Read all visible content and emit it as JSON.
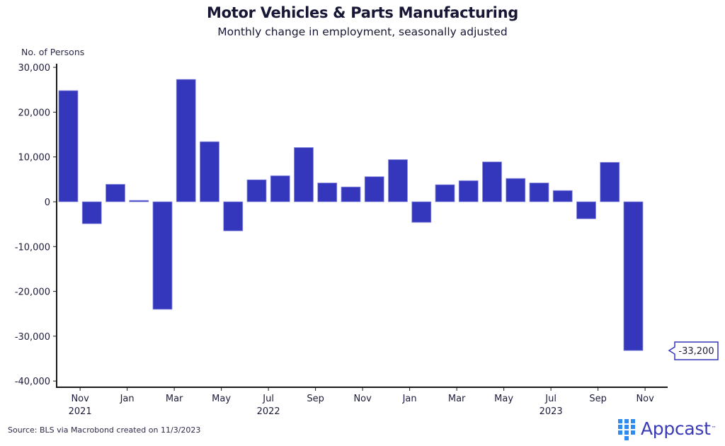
{
  "chart_data": {
    "type": "bar",
    "title": "Motor Vehicles & Parts Manufacturing",
    "subtitle": "Monthly change in employment, seasonally adjusted",
    "ylabel": "No. of Persons",
    "xlabel": "",
    "ylim": [
      -40000,
      30000
    ],
    "yticks": [
      30000,
      20000,
      10000,
      0,
      -10000,
      -20000,
      -30000,
      -40000
    ],
    "ytick_labels": [
      "30,000",
      "20,000",
      "10,000",
      "0",
      "-10,000",
      "-20,000",
      "-30,000",
      "-40,000"
    ],
    "grid": false,
    "categories": [
      "Oct 2021",
      "Nov 2021",
      "Dec 2021",
      "Jan 2022",
      "Feb 2022",
      "Mar 2022",
      "Apr 2022",
      "May 2022",
      "Jun 2022",
      "Jul 2022",
      "Aug 2022",
      "Sep 2022",
      "Oct 2022",
      "Nov 2022",
      "Dec 2022",
      "Jan 2023",
      "Feb 2023",
      "Mar 2023",
      "Apr 2023",
      "May 2023",
      "Jun 2023",
      "Jul 2023",
      "Aug 2023",
      "Sep 2023",
      "Oct 2023"
    ],
    "values": [
      24800,
      -4900,
      3900,
      300,
      -24000,
      27300,
      13400,
      -6500,
      4900,
      5800,
      12100,
      4200,
      3300,
      5600,
      9400,
      -4600,
      3800,
      4700,
      8900,
      5200,
      4200,
      2500,
      -3800,
      8800,
      -33200
    ],
    "xticks": [
      {
        "label": "Nov",
        "year": "2021",
        "after_index": 0
      },
      {
        "label": "Jan",
        "year": "",
        "after_index": 2
      },
      {
        "label": "Mar",
        "year": "",
        "after_index": 4
      },
      {
        "label": "May",
        "year": "",
        "after_index": 6
      },
      {
        "label": "Jul",
        "year": "2022",
        "after_index": 8
      },
      {
        "label": "Sep",
        "year": "",
        "after_index": 10
      },
      {
        "label": "Nov",
        "year": "",
        "after_index": 12
      },
      {
        "label": "Jan",
        "year": "",
        "after_index": 14
      },
      {
        "label": "Mar",
        "year": "",
        "after_index": 16
      },
      {
        "label": "May",
        "year": "",
        "after_index": 18
      },
      {
        "label": "Jul",
        "year": "2023",
        "after_index": 20
      },
      {
        "label": "Sep",
        "year": "",
        "after_index": 22
      },
      {
        "label": "Nov",
        "year": "",
        "after_index": 24
      }
    ],
    "annotation": {
      "text": "-33,200",
      "category": "Oct 2023"
    },
    "bar_color": "#3437bb",
    "legend": "none"
  },
  "footer": {
    "source": "Source: BLS via Macrobond created on 11/3/2023",
    "logo_text": "Appcast",
    "logo_tm": "™"
  },
  "colors": {
    "bar": "#3437bb",
    "logo_grid": "#2e8bf0",
    "logo_text": "#3a3ab8"
  }
}
